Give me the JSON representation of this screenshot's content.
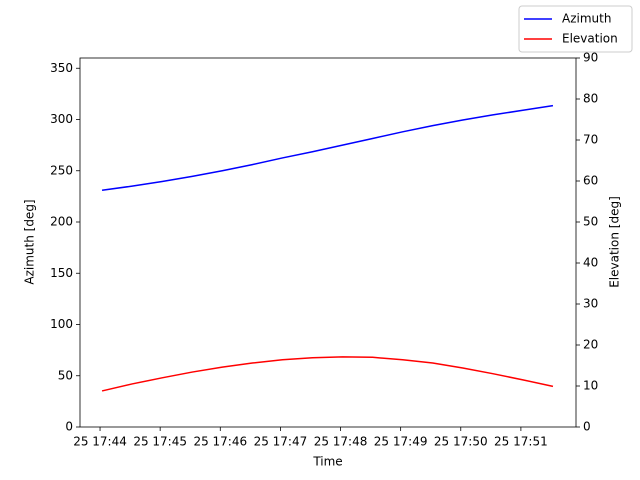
{
  "chart_data": {
    "type": "line",
    "x_label": "Time",
    "y_label": "Azimuth [deg]",
    "y2_label": "Elevation [deg]",
    "x": [
      "25 17:44:02",
      "25 17:44:32",
      "25 17:45:02",
      "25 17:45:32",
      "25 17:46:02",
      "25 17:46:32",
      "25 17:47:02",
      "25 17:47:32",
      "25 17:48:02",
      "25 17:48:32",
      "25 17:49:02",
      "25 17:49:32",
      "25 17:50:02",
      "25 17:50:32",
      "25 17:51:02",
      "25 17:51:32"
    ],
    "xlim": [
      "25 17:43:40",
      "25 17:51:55"
    ],
    "xticks": [
      "25 17:44",
      "25 17:45",
      "25 17:46",
      "25 17:47",
      "25 17:48",
      "25 17:49",
      "25 17:50",
      "25 17:51"
    ],
    "ylim": [
      0,
      360
    ],
    "yticks": [
      0,
      50,
      100,
      150,
      200,
      250,
      300,
      350
    ],
    "y2lim": [
      0,
      90
    ],
    "y2ticks": [
      0,
      10,
      20,
      30,
      40,
      50,
      60,
      70,
      80,
      90
    ],
    "legend": "upper right",
    "series": [
      {
        "name": "Azimuth",
        "color": "#0000ff",
        "values": [
          231,
          235,
          239.5,
          244.5,
          250,
          256,
          262.5,
          268.5,
          275,
          281.5,
          288,
          294,
          299.5,
          304.5,
          309,
          313.5
        ]
      },
      {
        "name": "Elevation",
        "color": "#ff0000",
        "axis": "y2",
        "values": [
          8.8,
          10.5,
          12.0,
          13.4,
          14.6,
          15.6,
          16.4,
          16.9,
          17.1,
          17.0,
          16.4,
          15.6,
          14.4,
          13.0,
          11.5,
          9.9
        ]
      }
    ]
  }
}
